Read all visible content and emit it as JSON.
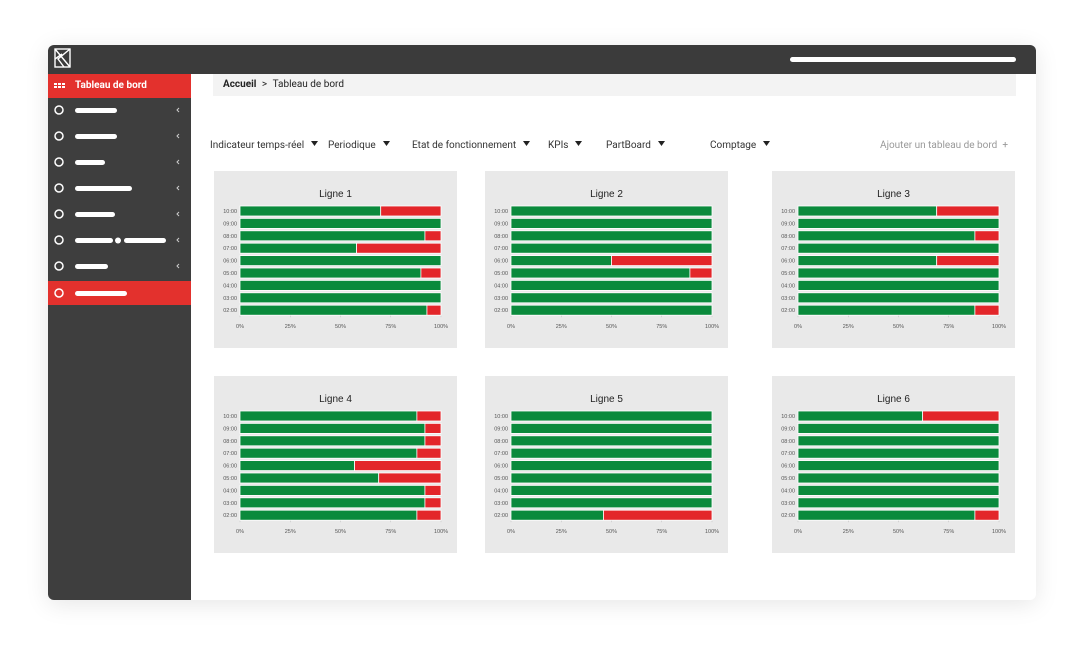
{
  "sidebar": {
    "active_item": "Tableau de bord"
  },
  "breadcrumb": {
    "home": "Accueil",
    "separator": ">",
    "current": "Tableau de bord"
  },
  "tabs": [
    "Indicateur temps-réel",
    "Periodique",
    "Etat de fonctionnement",
    "KPIs",
    "PartBoard",
    "Comptage"
  ],
  "add_dashboard": "Ajouter un tableau de bord",
  "chart_data": [
    {
      "type": "bar",
      "orientation": "horizontal",
      "stacked": true,
      "title": "Ligne 1",
      "categories": [
        "10:00",
        "09:00",
        "08:00",
        "07:00",
        "06:00",
        "05:00",
        "04:00",
        "03:00",
        "02:00"
      ],
      "series": [
        {
          "color": "#0a8a3c",
          "values": [
            70,
            100,
            92,
            58,
            100,
            90,
            100,
            100,
            93
          ]
        },
        {
          "color": "#e3262a",
          "values": [
            30,
            0,
            8,
            42,
            0,
            10,
            0,
            0,
            7
          ]
        }
      ],
      "xlim": [
        0,
        100
      ],
      "xticks": [
        {
          "value": 0,
          "label": "0%"
        },
        {
          "value": 25,
          "label": "25%"
        },
        {
          "value": 50,
          "label": "50%"
        },
        {
          "value": 75,
          "label": "75%"
        },
        {
          "value": 100,
          "label": "100%"
        }
      ]
    },
    {
      "type": "bar",
      "orientation": "horizontal",
      "stacked": true,
      "title": "Ligne 2",
      "categories": [
        "10:00",
        "09:00",
        "08:00",
        "07:00",
        "06:00",
        "05:00",
        "04:00",
        "03:00",
        "02:00"
      ],
      "series": [
        {
          "color": "#0a8a3c",
          "values": [
            100,
            100,
            100,
            100,
            50,
            89,
            100,
            100,
            100
          ]
        },
        {
          "color": "#e3262a",
          "values": [
            0,
            0,
            0,
            0,
            50,
            11,
            0,
            0,
            0
          ]
        }
      ],
      "xlim": [
        0,
        100
      ],
      "xticks": [
        {
          "value": 0,
          "label": "0%"
        },
        {
          "value": 25,
          "label": "25%"
        },
        {
          "value": 50,
          "label": "50%"
        },
        {
          "value": 75,
          "label": "75%"
        },
        {
          "value": 100,
          "label": "100%"
        }
      ]
    },
    {
      "type": "bar",
      "orientation": "horizontal",
      "stacked": true,
      "title": "Ligne 3",
      "categories": [
        "10:00",
        "09:00",
        "08:00",
        "07:00",
        "06:00",
        "05:00",
        "04:00",
        "03:00",
        "02:00"
      ],
      "series": [
        {
          "color": "#0a8a3c",
          "values": [
            69,
            100,
            88,
            100,
            69,
            100,
            100,
            100,
            88
          ]
        },
        {
          "color": "#e3262a",
          "values": [
            31,
            0,
            12,
            0,
            31,
            0,
            0,
            0,
            12
          ]
        }
      ],
      "xlim": [
        0,
        100
      ],
      "xticks": [
        {
          "value": 0,
          "label": "0%"
        },
        {
          "value": 25,
          "label": "25%"
        },
        {
          "value": 50,
          "label": "50%"
        },
        {
          "value": 75,
          "label": "75%"
        },
        {
          "value": 100,
          "label": "100%"
        }
      ]
    },
    {
      "type": "bar",
      "orientation": "horizontal",
      "stacked": true,
      "title": "Ligne 4",
      "categories": [
        "10:00",
        "09:00",
        "08:00",
        "07:00",
        "06:00",
        "05:00",
        "04:00",
        "03:00",
        "02:00"
      ],
      "series": [
        {
          "color": "#0a8a3c",
          "values": [
            88,
            92,
            92,
            88,
            57,
            69,
            92,
            92,
            88
          ]
        },
        {
          "color": "#e3262a",
          "values": [
            12,
            8,
            8,
            12,
            43,
            31,
            8,
            8,
            12
          ]
        }
      ],
      "xlim": [
        0,
        100
      ],
      "xticks": [
        {
          "value": 0,
          "label": "0%"
        },
        {
          "value": 25,
          "label": "25%"
        },
        {
          "value": 50,
          "label": "50%"
        },
        {
          "value": 75,
          "label": "75%"
        },
        {
          "value": 100,
          "label": "100%"
        }
      ]
    },
    {
      "type": "bar",
      "orientation": "horizontal",
      "stacked": true,
      "title": "Ligne 5",
      "categories": [
        "10:00",
        "09:00",
        "08:00",
        "07:00",
        "06:00",
        "05:00",
        "04:00",
        "03:00",
        "02:00"
      ],
      "series": [
        {
          "color": "#0a8a3c",
          "values": [
            100,
            100,
            100,
            100,
            100,
            100,
            100,
            100,
            46
          ]
        },
        {
          "color": "#e3262a",
          "values": [
            0,
            0,
            0,
            0,
            0,
            0,
            0,
            0,
            54
          ]
        }
      ],
      "xlim": [
        0,
        100
      ],
      "xticks": [
        {
          "value": 0,
          "label": "0%"
        },
        {
          "value": 25,
          "label": "25%"
        },
        {
          "value": 50,
          "label": "50%"
        },
        {
          "value": 75,
          "label": "75%"
        },
        {
          "value": 100,
          "label": "100%"
        }
      ]
    },
    {
      "type": "bar",
      "orientation": "horizontal",
      "stacked": true,
      "title": "Ligne 6",
      "categories": [
        "10:00",
        "09:00",
        "08:00",
        "07:00",
        "06:00",
        "05:00",
        "04:00",
        "03:00",
        "02:00"
      ],
      "series": [
        {
          "color": "#0a8a3c",
          "values": [
            62,
            100,
            100,
            100,
            100,
            100,
            100,
            100,
            88
          ]
        },
        {
          "color": "#e3262a",
          "values": [
            38,
            0,
            0,
            0,
            0,
            0,
            0,
            0,
            12
          ]
        }
      ],
      "xlim": [
        0,
        100
      ],
      "xticks": [
        {
          "value": 0,
          "label": "0%"
        },
        {
          "value": 25,
          "label": "25%"
        },
        {
          "value": 50,
          "label": "50%"
        },
        {
          "value": 75,
          "label": "75%"
        },
        {
          "value": 100,
          "label": "100%"
        }
      ]
    }
  ]
}
